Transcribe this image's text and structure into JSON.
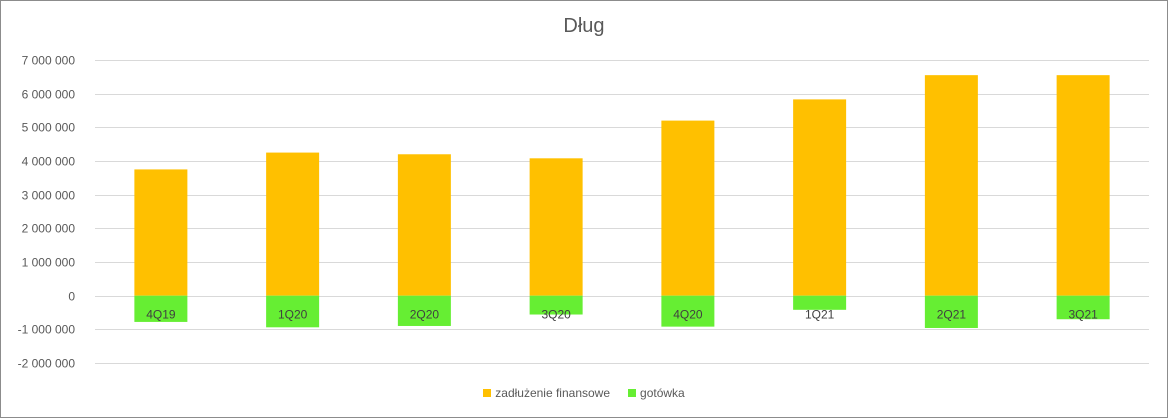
{
  "chart_data": {
    "type": "bar",
    "title": "Dług",
    "categories": [
      "4Q19",
      "1Q20",
      "2Q20",
      "3Q20",
      "4Q20",
      "1Q21",
      "2Q21",
      "3Q21"
    ],
    "series": [
      {
        "name": "zadłużenie finansowe",
        "color": "#FFC000",
        "values": [
          3750000,
          4250000,
          4200000,
          4080000,
          5200000,
          5830000,
          6550000,
          6550000
        ]
      },
      {
        "name": "gotówka",
        "color": "#66EE33",
        "values": [
          -780000,
          -940000,
          -900000,
          -560000,
          -920000,
          -420000,
          -960000,
          -700000
        ]
      }
    ],
    "ylim": [
      -2000000,
      7000000
    ],
    "yticks": [
      {
        "value": 7000000,
        "label": "7 000 000"
      },
      {
        "value": 6000000,
        "label": "6 000 000"
      },
      {
        "value": 5000000,
        "label": "5 000 000"
      },
      {
        "value": 4000000,
        "label": "4 000 000"
      },
      {
        "value": 3000000,
        "label": "3 000 000"
      },
      {
        "value": 2000000,
        "label": "2 000 000"
      },
      {
        "value": 1000000,
        "label": "1 000 000"
      },
      {
        "value": 0,
        "label": "0"
      },
      {
        "value": -1000000,
        "label": "-1 000 000"
      },
      {
        "value": -2000000,
        "label": "-2 000 000"
      }
    ],
    "grid": true,
    "legend_position": "bottom",
    "stacked": true
  }
}
